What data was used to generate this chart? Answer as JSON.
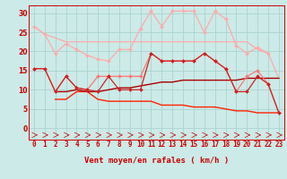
{
  "bg_color": "#cceae7",
  "grid_color": "#aad4d0",
  "xlabel": "Vent moyen/en rafales ( km/h )",
  "x": [
    0,
    1,
    2,
    3,
    4,
    5,
    6,
    7,
    8,
    9,
    10,
    11,
    12,
    13,
    14,
    15,
    16,
    17,
    18,
    19,
    20,
    21,
    22,
    23
  ],
  "ylim": [
    -3,
    32
  ],
  "yticks": [
    0,
    5,
    10,
    15,
    20,
    25,
    30
  ],
  "lines": [
    {
      "color": "#ffaaaa",
      "lw": 0.9,
      "marker": null,
      "values": [
        26.5,
        24.5,
        23.5,
        22.5,
        22.5,
        22.5,
        22.5,
        22.5,
        22.5,
        22.5,
        22.5,
        22.5,
        22.5,
        22.5,
        22.5,
        22.5,
        22.5,
        22.5,
        22.5,
        22.5,
        22.5,
        20.5,
        19.5,
        13.0
      ]
    },
    {
      "color": "#ffaaaa",
      "lw": 0.9,
      "marker": "D",
      "markersize": 2,
      "values": [
        26.5,
        24.5,
        19.5,
        22.0,
        20.5,
        19.0,
        18.0,
        17.5,
        20.5,
        20.5,
        26.0,
        30.5,
        26.5,
        30.5,
        30.5,
        30.5,
        25.0,
        30.5,
        28.5,
        21.5,
        19.5,
        21.0,
        19.5,
        null
      ]
    },
    {
      "color": "#ff7777",
      "lw": 0.9,
      "marker": "D",
      "markersize": 2,
      "values": [
        15.5,
        15.5,
        9.5,
        13.5,
        10.5,
        10.0,
        13.5,
        13.5,
        13.5,
        13.5,
        13.5,
        19.5,
        17.5,
        17.5,
        17.5,
        17.5,
        19.5,
        17.5,
        15.5,
        9.5,
        13.5,
        15.0,
        11.5,
        4.0
      ]
    },
    {
      "color": "#cc2222",
      "lw": 0.9,
      "marker": "D",
      "markersize": 2,
      "values": [
        15.5,
        15.5,
        9.5,
        13.5,
        10.5,
        10.0,
        9.5,
        13.5,
        10.0,
        10.0,
        10.0,
        19.5,
        17.5,
        17.5,
        17.5,
        17.5,
        19.5,
        17.5,
        15.5,
        9.5,
        9.5,
        13.5,
        11.5,
        4.0
      ]
    },
    {
      "color": "#ff2200",
      "lw": 1.0,
      "marker": null,
      "values": [
        null,
        null,
        7.5,
        7.5,
        9.5,
        9.5,
        7.5,
        7.0,
        7.0,
        7.0,
        7.0,
        7.0,
        6.0,
        6.0,
        6.0,
        5.5,
        5.5,
        5.5,
        5.0,
        4.5,
        4.5,
        4.0,
        4.0,
        4.0
      ]
    },
    {
      "color": "#aa0000",
      "lw": 1.0,
      "marker": null,
      "values": [
        null,
        null,
        9.5,
        9.5,
        10.0,
        9.5,
        9.5,
        10.0,
        10.5,
        10.5,
        11.0,
        11.5,
        12.0,
        12.0,
        12.5,
        12.5,
        12.5,
        12.5,
        12.5,
        12.5,
        13.0,
        13.0,
        13.0,
        13.0
      ]
    }
  ],
  "font_color": "#cc0000",
  "label_fontsize": 6.5,
  "tick_fontsize": 5.5
}
